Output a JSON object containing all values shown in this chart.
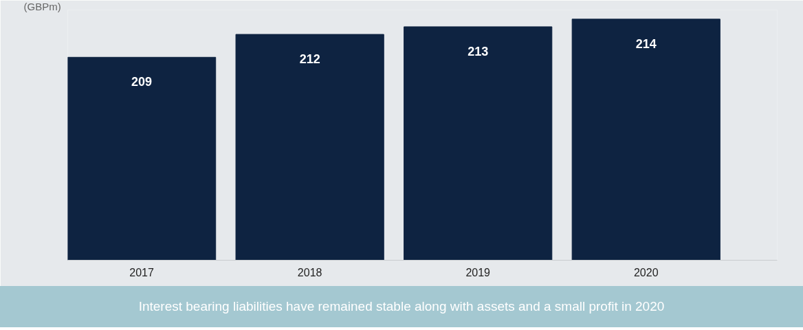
{
  "chart_data": {
    "type": "bar",
    "ylabel": "(GBPm)",
    "categories": [
      "2017",
      "2018",
      "2019",
      "2020"
    ],
    "values": [
      209,
      212,
      213,
      214
    ],
    "color": "#0e2341",
    "ylim": [
      182.4,
      215.2
    ],
    "data_labels": true,
    "grid": false,
    "tick_labels": "x",
    "annotations": [
      "Interest bearing liabilities have remained stable along with assets and a small profit in 2020"
    ]
  }
}
